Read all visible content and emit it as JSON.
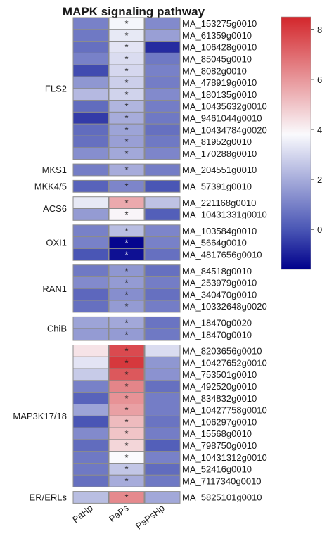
{
  "chart_data": {
    "type": "heatmap",
    "title": "MAPK signaling pathway",
    "columns": [
      "PaHp",
      "PaPs",
      "PaPsHp"
    ],
    "color_scale": {
      "stops": [
        {
          "value": -1.6,
          "color": "#00008b"
        },
        {
          "value": 0,
          "color": "#4a56b5"
        },
        {
          "value": 3.8,
          "color": "#fafafd"
        },
        {
          "value": 8.5,
          "color": "#d3262b"
        }
      ],
      "ticks": [
        0,
        2,
        4,
        6,
        8
      ],
      "range": [
        -1.6,
        8.5
      ]
    },
    "groups": [
      {
        "name": "FLS2",
        "rows": [
          {
            "gene": "MA_153275g0010",
            "values": [
              1.0,
              3.7,
              1.2
            ],
            "stars": [
              false,
              true,
              false
            ]
          },
          {
            "gene": "MA_61359g0010",
            "values": [
              0.8,
              3.4,
              1.7
            ],
            "stars": [
              false,
              true,
              false
            ]
          },
          {
            "gene": "MA_106428g0010",
            "values": [
              0.6,
              3.3,
              -0.8
            ],
            "stars": [
              false,
              true,
              false
            ]
          },
          {
            "gene": "MA_85045g0010",
            "values": [
              1.0,
              3.1,
              0.8
            ],
            "stars": [
              false,
              true,
              false
            ]
          },
          {
            "gene": "MA_8082g0010",
            "values": [
              -0.2,
              3.0,
              1.0
            ],
            "stars": [
              false,
              true,
              false
            ]
          },
          {
            "gene": "MA_478919g0010",
            "values": [
              1.5,
              2.8,
              0.9
            ],
            "stars": [
              false,
              true,
              false
            ]
          },
          {
            "gene": "MA_180135g0010",
            "values": [
              2.3,
              2.9,
              1.2
            ],
            "stars": [
              false,
              true,
              false
            ]
          },
          {
            "gene": "MA_10435632g0010",
            "values": [
              0.5,
              2.2,
              0.9
            ],
            "stars": [
              false,
              true,
              false
            ]
          },
          {
            "gene": "MA_9461044g0010",
            "values": [
              -0.5,
              2.0,
              0.8
            ],
            "stars": [
              false,
              true,
              false
            ]
          },
          {
            "gene": "MA_10434784g0020",
            "values": [
              0.5,
              1.8,
              0.6
            ],
            "stars": [
              false,
              true,
              false
            ]
          },
          {
            "gene": "MA_81952g0010",
            "values": [
              0.6,
              1.7,
              0.8
            ],
            "stars": [
              false,
              true,
              false
            ]
          },
          {
            "gene": "MA_170288g0010",
            "values": [
              1.3,
              1.9,
              1.1
            ],
            "stars": [
              false,
              true,
              false
            ]
          }
        ]
      },
      {
        "name": "MKS1",
        "rows": [
          {
            "gene": "MA_204551g0010",
            "values": [
              0.9,
              2.0,
              0.9
            ],
            "stars": [
              false,
              true,
              false
            ]
          }
        ]
      },
      {
        "name": "MKK4/5",
        "rows": [
          {
            "gene": "MA_57391g0010",
            "values": [
              0.3,
              1.1,
              0.0
            ],
            "stars": [
              false,
              true,
              false
            ]
          }
        ]
      },
      {
        "name": "ACS6",
        "rows": [
          {
            "gene": "MA_221168g0010",
            "values": [
              3.4,
              5.6,
              2.5
            ],
            "stars": [
              false,
              true,
              false
            ]
          },
          {
            "gene": "MA_10431331g0010",
            "values": [
              1.6,
              3.9,
              0.2
            ],
            "stars": [
              false,
              true,
              false
            ]
          }
        ]
      },
      {
        "name": "OXI1",
        "rows": [
          {
            "gene": "MA_103584g0010",
            "values": [
              1.0,
              2.4,
              1.1
            ],
            "stars": [
              false,
              true,
              false
            ]
          },
          {
            "gene": "MA_5664g0010",
            "values": [
              1.0,
              -1.5,
              1.0
            ],
            "stars": [
              false,
              true,
              false
            ]
          },
          {
            "gene": "MA_4817656g0010",
            "values": [
              0.0,
              -1.3,
              0.6
            ],
            "stars": [
              false,
              true,
              false
            ]
          }
        ]
      },
      {
        "name": "RAN1",
        "rows": [
          {
            "gene": "MA_84518g0010",
            "values": [
              0.8,
              1.5,
              0.6
            ],
            "stars": [
              false,
              true,
              false
            ]
          },
          {
            "gene": "MA_253979g0010",
            "values": [
              1.2,
              1.6,
              0.9
            ],
            "stars": [
              false,
              true,
              false
            ]
          },
          {
            "gene": "MA_340470g0010",
            "values": [
              0.4,
              1.3,
              0.6
            ],
            "stars": [
              false,
              true,
              false
            ]
          },
          {
            "gene": "MA_10332648g0020",
            "values": [
              0.6,
              1.6,
              0.9
            ],
            "stars": [
              false,
              true,
              false
            ]
          }
        ]
      },
      {
        "name": "ChiB",
        "rows": [
          {
            "gene": "MA_18470g0020",
            "values": [
              1.8,
              1.9,
              0.7
            ],
            "stars": [
              false,
              true,
              false
            ]
          },
          {
            "gene": "MA_18470g0010",
            "values": [
              1.6,
              1.6,
              0.8
            ],
            "stars": [
              false,
              true,
              false
            ]
          }
        ]
      },
      {
        "name": "MAP3K17/18",
        "rows": [
          {
            "gene": "MA_8203656g0010",
            "values": [
              4.3,
              7.7,
              3.1
            ],
            "stars": [
              false,
              true,
              false
            ]
          },
          {
            "gene": "MA_10427652g0010",
            "values": [
              3.3,
              8.1,
              1.5
            ],
            "stars": [
              false,
              true,
              false
            ]
          },
          {
            "gene": "MA_753501g0010",
            "values": [
              2.7,
              7.4,
              1.4
            ],
            "stars": [
              false,
              true,
              false
            ]
          },
          {
            "gene": "MA_492520g0010",
            "values": [
              1.0,
              6.4,
              0.6
            ],
            "stars": [
              false,
              true,
              false
            ]
          },
          {
            "gene": "MA_834832g0010",
            "values": [
              0.3,
              6.1,
              0.9
            ],
            "stars": [
              false,
              true,
              false
            ]
          },
          {
            "gene": "MA_10427758g0010",
            "values": [
              1.8,
              5.8,
              0.9
            ],
            "stars": [
              false,
              true,
              false
            ]
          },
          {
            "gene": "MA_106297g0010",
            "values": [
              0.0,
              5.2,
              0.7
            ],
            "stars": [
              false,
              true,
              false
            ]
          },
          {
            "gene": "MA_15568g0010",
            "values": [
              1.2,
              5.0,
              0.9
            ],
            "stars": [
              false,
              true,
              false
            ]
          },
          {
            "gene": "MA_798750g0010",
            "values": [
              0.5,
              4.6,
              0.2
            ],
            "stars": [
              false,
              true,
              false
            ]
          },
          {
            "gene": "MA_10431312g0010",
            "values": [
              0.8,
              3.8,
              1.0
            ],
            "stars": [
              false,
              true,
              false
            ]
          },
          {
            "gene": "MA_52416g0010",
            "values": [
              0.8,
              2.6,
              0.5
            ],
            "stars": [
              false,
              true,
              false
            ]
          },
          {
            "gene": "MA_7117340g0010",
            "values": [
              0.6,
              2.0,
              0.8
            ],
            "stars": [
              false,
              true,
              false
            ]
          }
        ]
      },
      {
        "name": "ER/ERLs",
        "rows": [
          {
            "gene": "MA_5825101g0010",
            "values": [
              2.4,
              6.3,
              1.9
            ],
            "stars": [
              false,
              true,
              false
            ]
          }
        ]
      }
    ],
    "star_symbol": "*"
  }
}
